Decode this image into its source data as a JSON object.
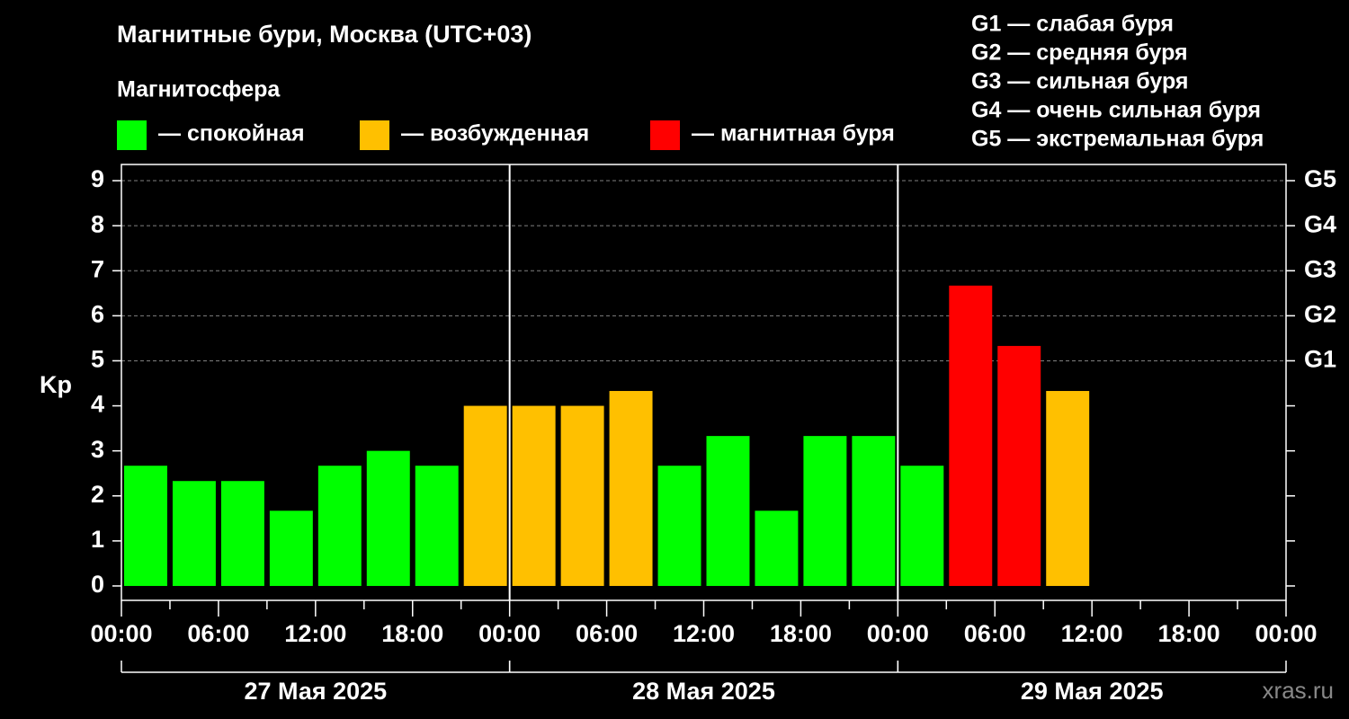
{
  "chart_data": {
    "type": "bar",
    "title": "Магнитные бури, Москва (UTC+03)",
    "y_label": "Kp",
    "legend_title": "Магнитосфера",
    "legend": [
      {
        "name": "— спокойная",
        "color": "#00ff00"
      },
      {
        "name": "— возбужденная",
        "color": "#ffc000"
      },
      {
        "name": "— магнитная буря",
        "color": "#ff0000"
      }
    ],
    "storm_levels": [
      "G1 — слабая буря",
      "G2 — средняя буря",
      "G3 — сильная буря",
      "G4 — очень сильная буря",
      "G5 — экстремальная буря"
    ],
    "x": [
      0,
      3,
      6,
      9,
      12,
      15,
      18,
      21,
      24,
      27,
      30,
      33,
      36,
      39,
      42,
      45,
      48,
      51,
      54,
      57
    ],
    "values": [
      2.67,
      2.33,
      2.33,
      1.67,
      2.67,
      3,
      2.67,
      4,
      4,
      4,
      4.33,
      2.67,
      3.33,
      1.67,
      3.33,
      3.33,
      2.67,
      6.67,
      5.33,
      4.33
    ],
    "colors": [
      "#00ff00",
      "#00ff00",
      "#00ff00",
      "#00ff00",
      "#00ff00",
      "#00ff00",
      "#00ff00",
      "#ffc000",
      "#ffc000",
      "#ffc000",
      "#ffc000",
      "#00ff00",
      "#00ff00",
      "#00ff00",
      "#00ff00",
      "#00ff00",
      "#00ff00",
      "#ff0000",
      "#ff0000",
      "#ffc000"
    ],
    "bar_width": 3,
    "xlim": [
      0,
      72
    ],
    "xticks": [
      {
        "value": 0,
        "label": "00:00"
      },
      {
        "value": 6,
        "label": "06:00"
      },
      {
        "value": 12,
        "label": "12:00"
      },
      {
        "value": 18,
        "label": "18:00"
      },
      {
        "value": 24,
        "label": "00:00"
      },
      {
        "value": 30,
        "label": "06:00"
      },
      {
        "value": 36,
        "label": "12:00"
      },
      {
        "value": 42,
        "label": "18:00"
      },
      {
        "value": 48,
        "label": "00:00"
      },
      {
        "value": 54,
        "label": "06:00"
      },
      {
        "value": 60,
        "label": "12:00"
      },
      {
        "value": 66,
        "label": "18:00"
      },
      {
        "value": 72,
        "label": "00:00"
      }
    ],
    "days": [
      {
        "start": 0,
        "end": 24,
        "label": "27 Мая 2025"
      },
      {
        "start": 24,
        "end": 48,
        "label": "28 Мая 2025"
      },
      {
        "start": 48,
        "end": 72,
        "label": "29 Мая 2025"
      }
    ],
    "ylim": [
      -0.32,
      9.36
    ],
    "yticks": [
      0,
      1,
      2,
      3,
      4,
      5,
      6,
      7,
      8,
      9
    ],
    "y2ticks": [
      {
        "value": 5,
        "label": "G1"
      },
      {
        "value": 6,
        "label": "G2"
      },
      {
        "value": 7,
        "label": "G3"
      },
      {
        "value": 8,
        "label": "G4"
      },
      {
        "value": 9,
        "label": "G5"
      }
    ],
    "grid_color": "#808080",
    "watermark": "xras.ru"
  }
}
